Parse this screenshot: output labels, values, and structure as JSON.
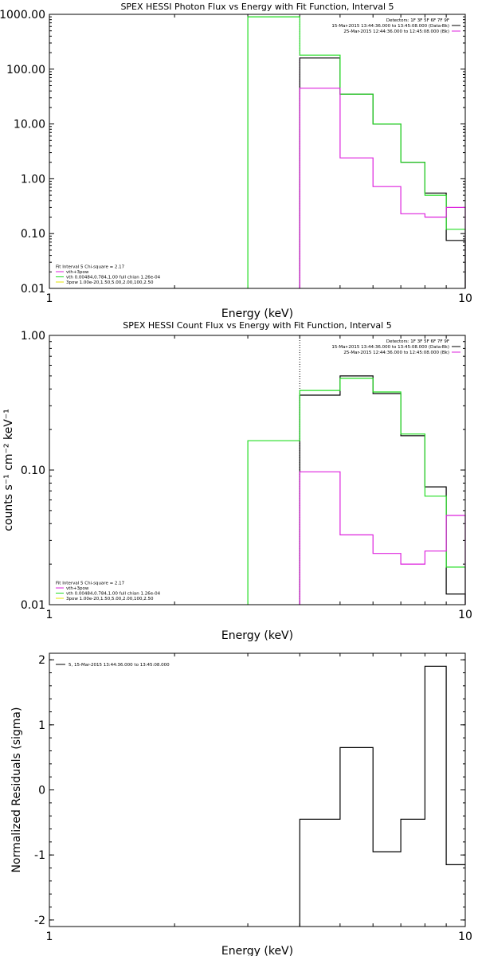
{
  "colors": {
    "black": "#000000",
    "green": "#22dd22",
    "magenta": "#dd22dd"
  },
  "chart_data": [
    {
      "type": "line",
      "title": "SPEX HESSI Photon Flux vs Energy with Fit Function, Interval 5",
      "xlabel": "Energy (keV)",
      "ylabel": "",
      "xscale": "log",
      "yscale": "log",
      "xlim": [
        1,
        10
      ],
      "ylim": [
        0.01,
        1000
      ],
      "xticks": [
        1,
        10
      ],
      "xtick_labels": [
        "1",
        "10"
      ],
      "yticks": [
        0.01,
        0.1,
        1,
        10,
        100,
        1000
      ],
      "ytick_labels": [
        "0.01",
        "0.10",
        "1.00",
        "10.00",
        "100.00",
        "1000.00"
      ],
      "bin_edges": [
        3.0,
        4.0,
        5.0,
        6.0,
        7.0,
        8.0,
        9.0,
        10.0
      ],
      "vline_x": 4.0,
      "vline_color": "magenta",
      "legend_top": {
        "header": "Detectors: 1F 3F 5F 6F 7F 9F",
        "items": [
          {
            "text": "15-Mar-2015 13:44:36.000 to 13:45:08.000 (Data-Bk)",
            "color": "black"
          },
          {
            "text": "25-Mar-2015 12:44:36.000 to 12:45:08.000 (Bk)",
            "color": "magenta"
          }
        ]
      },
      "legend_bottom": {
        "header": "Fit Interval  5   Chi-square = 2.17",
        "items": [
          {
            "text": "vth+3pow",
            "color": "magenta"
          },
          {
            "text": "vth 0.00484,0.784,1.00   full chian 1.26e-04",
            "color": "green"
          },
          {
            "text": "3pow 1.00e-20,1.50,5.00,2.00,100,2.50",
            "color": "yellow"
          }
        ]
      },
      "series": [
        {
          "name": "(Data-Bk)",
          "color": "black",
          "values": [
            null,
            160,
            35,
            10,
            2.0,
            0.55,
            0.075
          ]
        },
        {
          "name": "vth 0.00484,0.784,1.00   full chian 1.26e-04",
          "color": "green",
          "values": [
            900,
            180,
            35,
            10,
            2.0,
            0.5,
            0.12
          ]
        },
        {
          "name": "(Bk)",
          "color": "magenta",
          "values": [
            null,
            45,
            2.4,
            0.72,
            0.23,
            0.2,
            0.3
          ]
        }
      ]
    },
    {
      "type": "line",
      "title": "SPEX HESSI Count Flux vs Energy with Fit Function, Interval 5",
      "xlabel": "Energy (keV)",
      "ylabel": "counts s⁻¹ cm⁻² keV⁻¹",
      "xscale": "log",
      "yscale": "log",
      "xlim": [
        1,
        10
      ],
      "ylim": [
        0.01,
        1.0
      ],
      "xticks": [
        1,
        10
      ],
      "xtick_labels": [
        "1",
        "10"
      ],
      "yticks": [
        0.01,
        0.1,
        1.0
      ],
      "ytick_labels": [
        "0.01",
        "0.10",
        "1.00"
      ],
      "bin_edges": [
        3.0,
        4.0,
        5.0,
        6.0,
        7.0,
        8.0,
        9.0,
        10.0
      ],
      "vline_x": 4.0,
      "vline_color": "black",
      "legend_top": {
        "header": "Detectors: 1F 3F 5F 6F 7F 9F",
        "items": [
          {
            "text": "15-Mar-2015 13:44:36.000 to 13:45:08.000 (Data-Bk)",
            "color": "black"
          },
          {
            "text": "25-Mar-2015 12:44:36.000 to 12:45:08.000 (Bk)",
            "color": "magenta"
          }
        ]
      },
      "legend_bottom": {
        "header": "Fit Interval  5   Chi-square = 2.17",
        "items": [
          {
            "text": "vth+3pow",
            "color": "magenta"
          },
          {
            "text": "vth 0.00484,0.784,1.00   full chian 1.26e-04",
            "color": "green"
          },
          {
            "text": "3pow 1.00e-20,1.50,5.00,2.00,100,2.50",
            "color": "yellow"
          }
        ]
      },
      "series": [
        {
          "name": "(Data-Bk)",
          "color": "black",
          "values": [
            null,
            0.36,
            0.5,
            0.37,
            0.18,
            0.075,
            0.012
          ]
        },
        {
          "name": "vth 0.00484,0.784,1.00   full chian 1.26e-04",
          "color": "green",
          "values": [
            0.165,
            0.39,
            0.48,
            0.38,
            0.185,
            0.064,
            0.019
          ]
        },
        {
          "name": "(Bk)",
          "color": "magenta",
          "values": [
            null,
            0.097,
            0.033,
            0.024,
            0.02,
            0.025,
            0.046
          ]
        }
      ]
    },
    {
      "type": "line",
      "title": "",
      "xlabel": "Energy (keV)",
      "ylabel": "Normalized Residuals (sigma)",
      "xscale": "log",
      "yscale": "linear",
      "xlim": [
        1,
        10
      ],
      "ylim": [
        -2.1,
        2.1
      ],
      "xticks": [
        1,
        10
      ],
      "xtick_labels": [
        "1",
        "10"
      ],
      "yticks": [
        -2,
        -1,
        0,
        1,
        2
      ],
      "ytick_labels": [
        "-2",
        "-1",
        "0",
        "1",
        "2"
      ],
      "bin_edges": [
        4.0,
        5.0,
        6.0,
        7.0,
        8.0,
        9.0,
        10.0
      ],
      "legend_top": {
        "header": "",
        "items": [
          {
            "text": "5, 15-Mar-2015 13:44:36.000 to 13:45:08.000",
            "color": "black"
          }
        ]
      },
      "series": [
        {
          "name": "5, 15-Mar-2015 13:44:36.000 to 13:45:08.000",
          "color": "black",
          "values": [
            -0.45,
            0.65,
            -0.95,
            -0.45,
            1.9,
            -1.15
          ]
        }
      ]
    }
  ]
}
